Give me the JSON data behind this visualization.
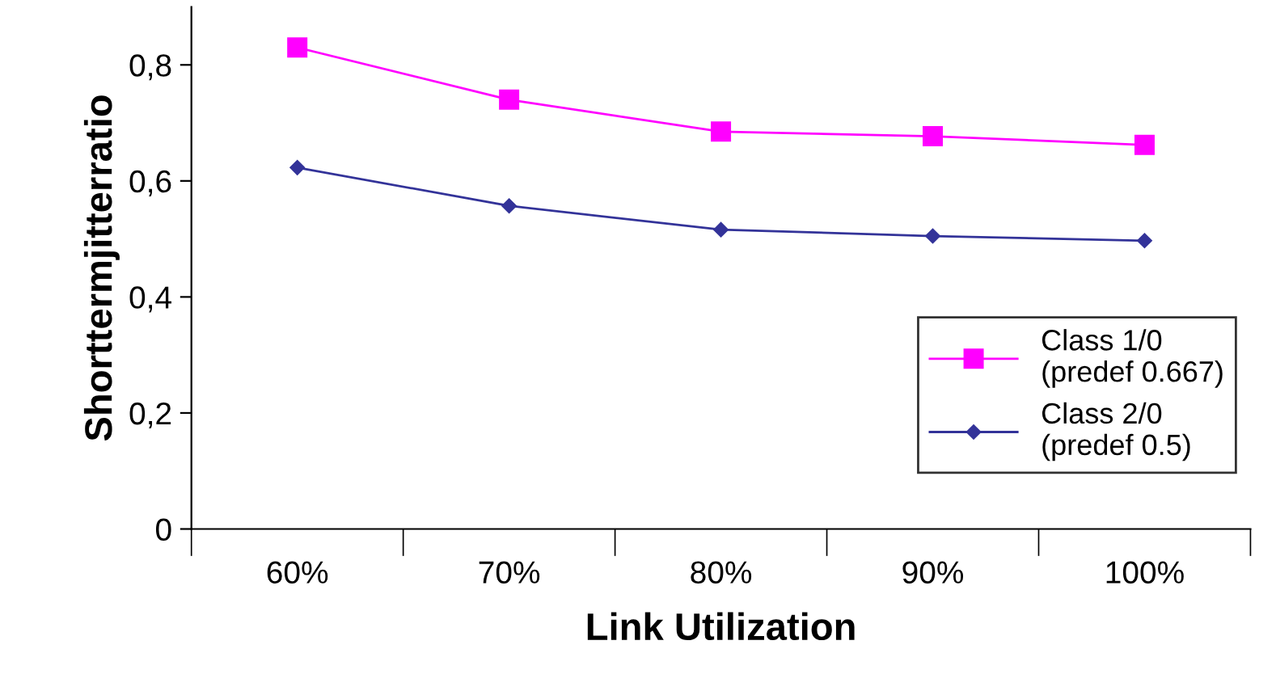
{
  "chart_data": {
    "type": "line",
    "xlabel": "Link Utilization",
    "ylabel": "Shorttermjitterratio",
    "categories": [
      "60%",
      "70%",
      "80%",
      "90%",
      "100%"
    ],
    "series": [
      {
        "name": "Class 1/0\n(predef 0.667)",
        "color": "#ff00ff",
        "marker": "square",
        "values": [
          0.83,
          0.74,
          0.685,
          0.677,
          0.662
        ]
      },
      {
        "name": "Class 2/0\n(predef 0.5)",
        "color": "#333399",
        "marker": "diamond",
        "values": [
          0.623,
          0.557,
          0.516,
          0.505,
          0.497
        ]
      }
    ],
    "ylim": [
      0,
      0.9
    ],
    "yticks": [
      0,
      {
        "value": 0.2,
        "label": "0,2"
      },
      {
        "value": 0.4,
        "label": "0,4"
      },
      {
        "value": 0.6,
        "label": "0,6"
      },
      {
        "value": 0.8,
        "label": "0,8"
      }
    ],
    "grid": false,
    "legend": "lower right",
    "line_style": "solid"
  }
}
